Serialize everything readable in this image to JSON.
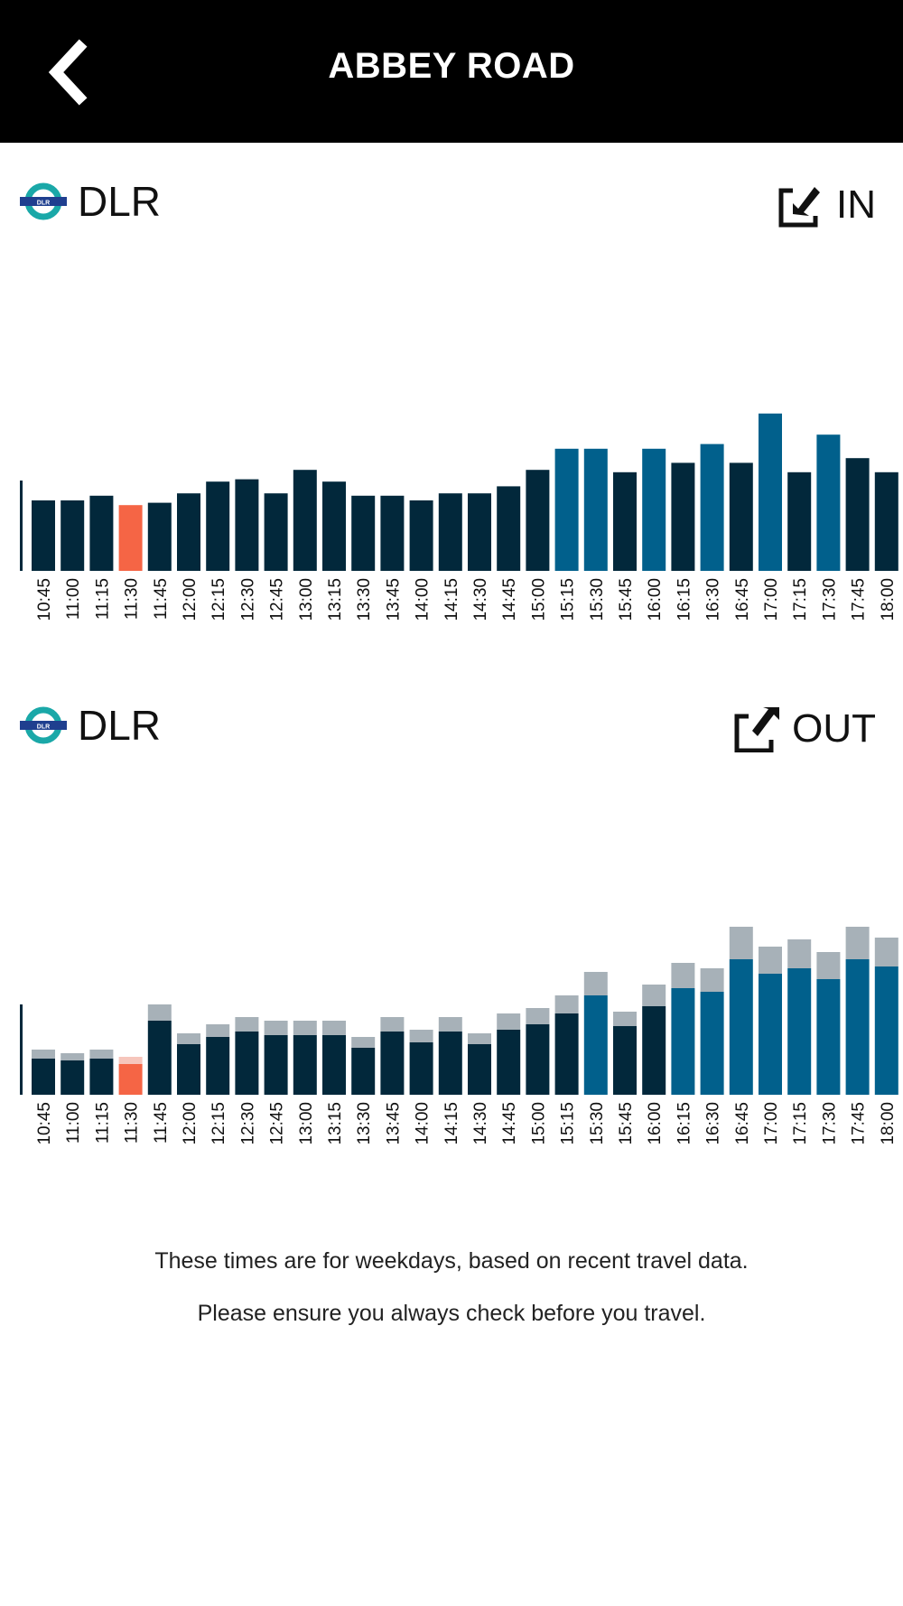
{
  "header": {
    "title": "ABBEY ROAD",
    "back_icon": "chevron-left-icon"
  },
  "sections": [
    {
      "line": "DLR",
      "direction": "IN",
      "direction_icon": "tap-in-icon"
    },
    {
      "line": "DLR",
      "direction": "OUT",
      "direction_icon": "tap-out-icon"
    }
  ],
  "colors": {
    "dark": "#02283b",
    "blue": "#01608c",
    "current": "#f56545",
    "grey": "#a7b1b8",
    "current_light": "#f6c6bc"
  },
  "footer": {
    "line1": "These times are for weekdays, based on recent travel data.",
    "line2": "Please ensure you always check before you travel."
  },
  "chart_data": [
    {
      "type": "bar",
      "times": [
        "10:45",
        "11:00",
        "11:15",
        "11:30",
        "11:45",
        "12:00",
        "12:15",
        "12:30",
        "12:45",
        "13:00",
        "13:15",
        "13:30",
        "13:45",
        "14:00",
        "14:15",
        "14:30",
        "14:45",
        "15:00",
        "15:15",
        "15:30",
        "15:45",
        "16:00",
        "16:15",
        "16:30",
        "16:45",
        "17:00",
        "17:15",
        "17:30",
        "17:45",
        "18:00"
      ],
      "values": [
        30,
        30,
        32,
        28,
        29,
        33,
        38,
        39,
        33,
        43,
        38,
        32,
        32,
        30,
        33,
        33,
        36,
        43,
        52,
        52,
        42,
        52,
        46,
        54,
        46,
        67,
        42,
        58,
        48,
        42
      ],
      "highlight": [
        0,
        0,
        0,
        2,
        0,
        0,
        0,
        0,
        0,
        0,
        0,
        0,
        0,
        0,
        0,
        0,
        0,
        0,
        1,
        1,
        0,
        1,
        0,
        1,
        0,
        1,
        0,
        1,
        0,
        0
      ],
      "ylim": [
        0,
        100
      ]
    },
    {
      "type": "bar",
      "times": [
        "10:45",
        "11:00",
        "11:15",
        "11:30",
        "11:45",
        "12:00",
        "12:15",
        "12:30",
        "12:45",
        "13:00",
        "13:15",
        "13:30",
        "13:45",
        "14:00",
        "14:15",
        "14:30",
        "14:45",
        "15:00",
        "15:15",
        "15:30",
        "15:45",
        "16:00",
        "16:15",
        "16:30",
        "16:45",
        "17:00",
        "17:15",
        "17:30",
        "17:45",
        "18:00"
      ],
      "base": [
        20,
        19,
        20,
        17,
        41,
        28,
        32,
        35,
        33,
        33,
        33,
        26,
        35,
        29,
        35,
        28,
        36,
        39,
        45,
        55,
        38,
        49,
        59,
        57,
        75,
        67,
        70,
        64,
        75,
        71
      ],
      "extra": [
        5,
        4,
        5,
        4,
        9,
        6,
        7,
        8,
        8,
        8,
        8,
        6,
        8,
        7,
        8,
        6,
        9,
        9,
        10,
        13,
        8,
        12,
        14,
        13,
        18,
        15,
        16,
        15,
        18,
        16
      ],
      "highlight": [
        0,
        0,
        0,
        2,
        0,
        0,
        0,
        0,
        0,
        0,
        0,
        0,
        0,
        0,
        0,
        0,
        0,
        0,
        0,
        1,
        0,
        0,
        1,
        1,
        1,
        1,
        1,
        1,
        1,
        1
      ],
      "ylim": [
        0,
        100
      ]
    }
  ]
}
